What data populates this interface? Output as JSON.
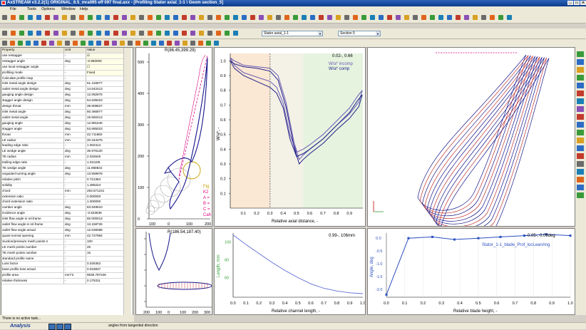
{
  "window": {
    "title": "AxSTREAM v3.2.2(1)  ORIGINAL_6.5_mra095 eff 097 final.axx - [Profiling  Stator axial_1-1 \\ Geom section_5]"
  },
  "menu": [
    "File",
    "Tools",
    "Options",
    "Window",
    "Help"
  ],
  "toolbar": {
    "stator_select": "Stator axial_1-1",
    "section_select": "Section 5"
  },
  "grid": {
    "headers": [
      "Property",
      "Unit",
      "Value"
    ],
    "rows": [
      [
        "use restagger",
        "-",
        "☑"
      ],
      [
        "restagger angle",
        "deg",
        "-0.950000"
      ],
      [
        "use local restagger angle",
        "-",
        "☐"
      ],
      [
        "profiling mode",
        "-",
        "Fixed"
      ],
      [
        "Calculate profile map",
        "-",
        ""
      ],
      [
        "inlet metal angle design",
        "deg",
        "61.416977"
      ],
      [
        "outlet metal angle design",
        "deg",
        "14.642413"
      ],
      [
        "gauging angle design",
        "deg",
        "12.082975"
      ],
      [
        "stagger angle design",
        "deg",
        "54.635023"
      ],
      [
        "design throat",
        "mm",
        "39.808627"
      ],
      [
        "inlet metal angle",
        "deg",
        "60.466977"
      ],
      [
        "outlet metal angle",
        "deg",
        "15.592413"
      ],
      [
        "gauging angle",
        "deg",
        "12.981546"
      ],
      [
        "stagger angle",
        "deg",
        "53.685023"
      ],
      [
        "throat",
        "mm",
        "42.711660"
      ],
      [
        "LE radius",
        "mm",
        "20.343375"
      ],
      [
        "leading edge ratio",
        "-",
        "1.002414"
      ],
      [
        "LE wedge angle",
        "deg",
        "36.976120"
      ],
      [
        "TE radius",
        "mm",
        "2.032645"
      ],
      [
        "trailing edge ratio",
        "-",
        "1.011105"
      ],
      [
        "TE wedge angle",
        "deg",
        "11.968842"
      ],
      [
        "unguided turning angle",
        "deg",
        "13.559978"
      ],
      [
        "relative pitch",
        "-",
        "0.721384"
      ],
      [
        "solidity",
        "-",
        "1.386224"
      ],
      [
        "chord",
        "mm",
        "283.571231"
      ],
      [
        "extension ratio",
        "-",
        "0.000000"
      ],
      [
        "chord extension ratio",
        "-",
        "1.000000"
      ],
      [
        "camber angle",
        "deg",
        "83.949610"
      ],
      [
        "incidence angle",
        "deg",
        "-0.533636"
      ],
      [
        "inlet flow angle in rel.frame",
        "deg",
        "60.000013"
      ],
      [
        "outlet flow angle in rel.frame",
        "deg",
        "13.158726"
      ],
      [
        "outlet flow angle actual",
        "deg",
        "12.536088"
      ],
      [
        "quasi-normal opening",
        "mm",
        "42.727984"
      ],
      [
        "Suction/pressure mesh points n",
        "-",
        "100"
      ],
      [
        "LE mesh points number",
        "-",
        "25"
      ],
      [
        "TE mesh points number",
        "-",
        "15"
      ],
      [
        "standard profile name",
        "-",
        ""
      ],
      [
        "Loss factor",
        "-",
        "0.026352"
      ],
      [
        "base profile loss actual",
        "-",
        "0.016837"
      ],
      [
        "profile area",
        "mm^2",
        "9536.787246"
      ],
      [
        "relative thickness",
        "-",
        "0.175311"
      ]
    ]
  },
  "status": {
    "text": "There is no active task...",
    "mode": "Analysis",
    "hint": "angles from tangential direction"
  },
  "profile_plot": {
    "coords": "R(86.45,399.29)",
    "legend": [
      "Fig",
      "K2",
      "A =",
      "B =",
      "C =",
      "Cah"
    ],
    "x_ticks": [
      "100",
      "0",
      "100",
      "200"
    ],
    "y_ticks": [
      "500",
      "400",
      "300",
      "200",
      "100",
      "0"
    ]
  },
  "section_plot": {
    "coords": "R(186.54,187.40)",
    "x_ticks": [
      "200",
      "100",
      "0",
      "100",
      "200",
      "300"
    ]
  },
  "mach_plot": {
    "readout": "0.02-, 0.66",
    "legend": [
      "W/a* incomp",
      "W/a* comp"
    ],
    "xlabel": "Relative axial distance, -",
    "ylabel": "W/a*, -",
    "x_ticks": [
      "0.1",
      "0.2",
      "0.3",
      "0.4",
      "0.5",
      "0.6",
      "0.7",
      "0.8",
      "0.9"
    ],
    "y_ticks": [
      "1.0",
      "0.9",
      "0.8",
      "0.7",
      "0.6",
      "0.5",
      "0.4",
      "0.3",
      "0.2",
      "0.1"
    ]
  },
  "channel_plot": {
    "readout": "0.99-, 106mm",
    "xlabel": "Relative channel length, -",
    "ylabel": "Length, mm",
    "x_ticks": [
      "0.0",
      "0.1",
      "0.2",
      "0.3",
      "0.4",
      "0.5",
      "0.6",
      "0.7",
      "0.8",
      "0.9",
      "1.0"
    ],
    "y_ticks": [
      "100",
      "80",
      "60"
    ]
  },
  "angle_plot": {
    "readout": "-0.05-, 0.06deg",
    "series_label": "Stator_1-1_blade_Prof_locLeanAng",
    "xlabel": "Relative blade height, -",
    "ylabel": "Angle, deg",
    "x_ticks": [
      "0.0",
      "0.1",
      "0.2",
      "0.3",
      "0.4",
      "0.5",
      "0.6",
      "0.7",
      "0.8",
      "0.9",
      "1.0"
    ],
    "y_ticks": [
      "0.0",
      "-0.5",
      "-1.0",
      "-1.5",
      "-2.0"
    ]
  },
  "chart_data": [
    {
      "type": "line",
      "xlabel": "Relative axial distance, -",
      "ylabel": "W/a*, -",
      "xlim": [
        0,
        1
      ],
      "ylim": [
        0,
        1.05
      ],
      "series": [
        {
          "name": "W/a* incomp",
          "x": [
            0.0,
            0.03,
            0.1,
            0.2,
            0.3,
            0.36,
            0.42,
            0.48,
            0.52,
            0.55,
            0.6,
            0.7,
            0.8,
            0.9,
            0.97,
            0.995,
            0.96,
            0.9,
            0.8,
            0.7,
            0.6,
            0.55,
            0.5,
            0.45,
            0.4,
            0.35,
            0.3,
            0.2,
            0.1,
            0.03,
            0.0
          ],
          "y": [
            1.02,
            1.0,
            0.97,
            0.96,
            0.95,
            0.9,
            0.72,
            0.45,
            0.33,
            0.36,
            0.4,
            0.47,
            0.56,
            0.64,
            0.72,
            0.8,
            0.76,
            0.68,
            0.59,
            0.5,
            0.43,
            0.4,
            0.38,
            0.5,
            0.71,
            0.82,
            0.86,
            0.89,
            0.92,
            0.97,
            1.02
          ]
        },
        {
          "name": "W/a* comp",
          "x": [
            0.0,
            0.03,
            0.1,
            0.2,
            0.3,
            0.36,
            0.42,
            0.48,
            0.52,
            0.55,
            0.6,
            0.7,
            0.8,
            0.9,
            0.97,
            0.995,
            0.96,
            0.9,
            0.8,
            0.7,
            0.6,
            0.55,
            0.5,
            0.45,
            0.4,
            0.35,
            0.3,
            0.2,
            0.1,
            0.03,
            0.0
          ],
          "y": [
            1.0,
            0.98,
            0.96,
            0.95,
            0.93,
            0.87,
            0.69,
            0.42,
            0.3,
            0.33,
            0.37,
            0.44,
            0.53,
            0.61,
            0.69,
            0.77,
            0.73,
            0.65,
            0.56,
            0.47,
            0.4,
            0.37,
            0.35,
            0.47,
            0.68,
            0.78,
            0.82,
            0.86,
            0.9,
            0.95,
            1.0
          ]
        }
      ]
    },
    {
      "type": "line",
      "xlabel": "Relative channel length, -",
      "ylabel": "Length, mm",
      "xlim": [
        0,
        1
      ],
      "ylim": [
        38,
        110
      ],
      "series": [
        {
          "x": [
            0.0,
            0.1,
            0.2,
            0.3,
            0.4,
            0.5,
            0.6,
            0.7,
            0.8,
            0.9,
            1.0
          ],
          "y": [
            108,
            97,
            87,
            77,
            68,
            60,
            53,
            48,
            45,
            43,
            42
          ]
        }
      ]
    },
    {
      "type": "line",
      "xlabel": "Relative blade height, -",
      "ylabel": "Angle, deg",
      "xlim": [
        0,
        1
      ],
      "ylim": [
        -2.3,
        0.2
      ],
      "series": [
        {
          "name": "Stator_1-1_blade_Prof_locLeanAng",
          "x": [
            0.0,
            0.12,
            0.25,
            0.37,
            0.5,
            0.62,
            0.75,
            0.87,
            1.0
          ],
          "y": [
            -2.2,
            0.0,
            0.05,
            -0.05,
            0.0,
            0.05,
            0.1,
            0.15,
            0.1
          ]
        }
      ]
    }
  ]
}
